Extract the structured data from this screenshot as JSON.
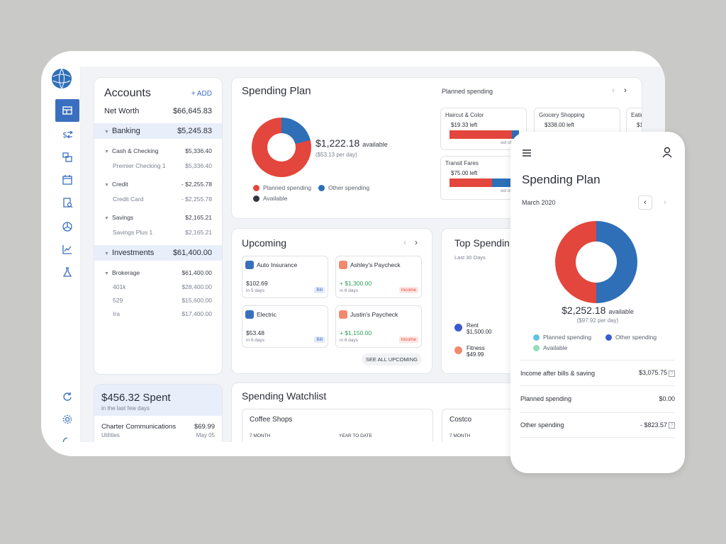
{
  "accounts": {
    "title": "Accounts",
    "add": "+ ADD",
    "net_worth_label": "Net Worth",
    "net_worth_value": "$66,645.83",
    "banking": {
      "label": "Banking",
      "value": "$5,245.83"
    },
    "cash_checking": {
      "label": "Cash & Checking",
      "value": "$5,336.40"
    },
    "premier_checking": {
      "label": "Premier Checking 1",
      "value": "$5,336.40"
    },
    "credit": {
      "label": "Credit",
      "value": "- $2,255.78"
    },
    "credit_card": {
      "label": "Credit Card",
      "value": "- $2,255.78"
    },
    "savings": {
      "label": "Savings",
      "value": "$2,165.21"
    },
    "savings_plus": {
      "label": "Savings Plus 1",
      "value": "$2,165.21"
    },
    "investments": {
      "label": "Investments",
      "value": "$61,400.00"
    },
    "brokerage": {
      "label": "Brokerage",
      "value": "$61,400.00"
    },
    "k401": {
      "label": "401k",
      "value": "$28,400.00"
    },
    "p529": {
      "label": "529",
      "value": "$15,600.00"
    },
    "ira": {
      "label": "Ira",
      "value": "$17,400.00"
    }
  },
  "spent": {
    "amount": "$456.32 Spent",
    "sub": "in the last few days",
    "item_name": "Charter Communications",
    "item_amount": "$69.99",
    "item_category": "Utilities",
    "item_date": "May 05"
  },
  "plan": {
    "title": "Spending Plan",
    "available_amount": "$1,222.18",
    "available_label": "available",
    "per_day": "($53.13 per day)",
    "legend_planned": "Planned spending",
    "legend_other": "Other spending",
    "legend_available": "Available",
    "planned_label": "Planned spending",
    "colors": {
      "planned": "#e3463c",
      "other": "#2e6fb8",
      "available": "#2f3640"
    },
    "items": [
      {
        "name": "Haircut & Color",
        "left": "$19.33 left",
        "of": "out of $200"
      },
      {
        "name": "Grocery Shopping",
        "left": "$338.00 left",
        "of": ""
      },
      {
        "name": "Eatin",
        "left": "$1",
        "of": ""
      },
      {
        "name": "Transit Fares",
        "left": "$75.00 left",
        "of": "out of $120"
      }
    ]
  },
  "upcoming": {
    "title": "Upcoming",
    "see_all": "SEE ALL UPCOMING",
    "items": [
      {
        "name": "Auto Insurance",
        "amount": "$102.69",
        "days": "in 5 days",
        "tag": "Bill"
      },
      {
        "name": "Ashley's Paycheck",
        "amount": "+ $1,300.00",
        "days": "in 6 days",
        "tag": "Income"
      },
      {
        "name": "Electric",
        "amount": "$53.48",
        "days": "in 6 days",
        "tag": "Bill"
      },
      {
        "name": "Justin's Paycheck",
        "amount": "+ $1,150.00",
        "days": "in 6 days",
        "tag": "Income"
      }
    ]
  },
  "top_spending": {
    "title": "Top Spendin",
    "sub": "Last 30 Days",
    "items": [
      {
        "name": "Rent",
        "amount": "$1,500.00"
      },
      {
        "name": "Fitness",
        "amount": "$49.99"
      }
    ]
  },
  "watchlist": {
    "title": "Spending Watchlist",
    "items": [
      {
        "name": "Coffee Shops",
        "col1": "7 MONTH",
        "col2": "YEAR TO DATE"
      },
      {
        "name": "Costco",
        "col1": "7 MONTH"
      }
    ]
  },
  "phone": {
    "title": "Spending Plan",
    "month": "March 2020",
    "available_amount": "$2,252.18",
    "available_label": "available",
    "per_day": "($97.92 per day)",
    "legend_planned": "Planned spending",
    "legend_other": "Other spending",
    "legend_available": "Available",
    "rows": [
      {
        "label": "Income after bills & saving",
        "value": "$3,075.75"
      },
      {
        "label": "Planned spending",
        "value": "$0.00"
      },
      {
        "label": "Other spending",
        "value": "- $823.57"
      }
    ]
  }
}
